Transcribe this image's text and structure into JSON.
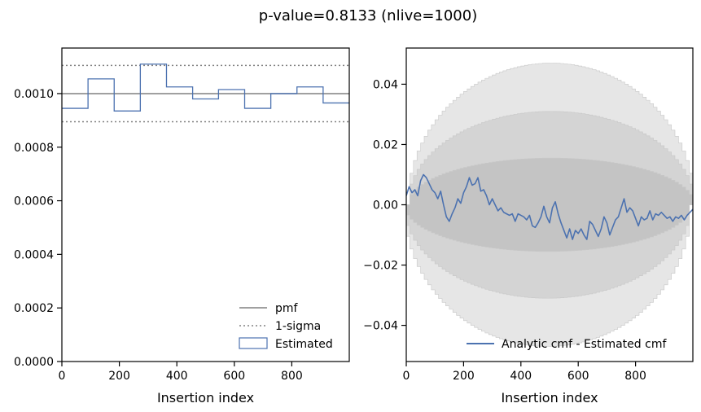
{
  "title": "p-value=0.8133 (nlive=1000)",
  "chart_data": [
    {
      "type": "histogram",
      "xlabel": "Insertion index",
      "ylabel": "",
      "xlim": [
        0,
        1000
      ],
      "ylim": [
        0,
        0.00117
      ],
      "xticks": [
        0,
        200,
        400,
        600,
        800
      ],
      "xtick_labels": [
        "0",
        "200",
        "400",
        "600",
        "800"
      ],
      "yticks": [
        0.0,
        0.0002,
        0.0004,
        0.0006,
        0.0008,
        0.001
      ],
      "ytick_labels": [
        "0.0000",
        "0.0002",
        "0.0004",
        "0.0006",
        "0.0008",
        "0.0010"
      ],
      "pmf": 0.001,
      "sigma_upper": 0.001105,
      "sigma_lower": 0.000895,
      "bin_edges": [
        0,
        91,
        182,
        273,
        364,
        455,
        545,
        636,
        727,
        818,
        909,
        1000
      ],
      "bin_values": [
        0.000945,
        0.001055,
        0.000935,
        0.00111,
        0.001025,
        0.00098,
        0.001015,
        0.000945,
        0.001,
        0.001025,
        0.000965
      ],
      "legend": [
        "pmf",
        "1-sigma",
        "Estimated"
      ],
      "legend_position": "bottom-right",
      "colors": {
        "pmf": "#808080",
        "sigma": "#808080",
        "estimated": "#4c72b0"
      }
    },
    {
      "type": "line",
      "xlabel": "Insertion index",
      "ylabel": "",
      "xlim": [
        0,
        1000
      ],
      "ylim": [
        -0.052,
        0.052
      ],
      "xticks": [
        0,
        200,
        400,
        600,
        800
      ],
      "xtick_labels": [
        "0",
        "200",
        "400",
        "600",
        "800"
      ],
      "yticks": [
        -0.04,
        -0.02,
        0.0,
        0.02,
        0.04
      ],
      "ytick_labels": [
        "−0.04",
        "−0.02",
        "0.00",
        "0.02",
        "0.04"
      ],
      "bands": [
        {
          "sigma": 3,
          "max": 0.047,
          "color": "#e6e6e6"
        },
        {
          "sigma": 2,
          "max": 0.031,
          "color": "#d4d4d4"
        },
        {
          "sigma": 1,
          "max": 0.0155,
          "color": "#c4c4c4"
        }
      ],
      "series": [
        {
          "name": "Analytic cmf - Estimated cmf",
          "color": "#4c72b0",
          "x": [
            0,
            10,
            20,
            30,
            40,
            50,
            60,
            70,
            80,
            90,
            100,
            110,
            120,
            130,
            140,
            150,
            160,
            170,
            180,
            190,
            200,
            210,
            220,
            230,
            240,
            250,
            260,
            270,
            280,
            290,
            300,
            310,
            320,
            330,
            340,
            350,
            360,
            370,
            380,
            390,
            400,
            410,
            420,
            430,
            440,
            450,
            460,
            470,
            480,
            490,
            500,
            510,
            520,
            530,
            540,
            550,
            560,
            570,
            580,
            590,
            600,
            610,
            620,
            630,
            640,
            650,
            660,
            670,
            680,
            690,
            700,
            710,
            720,
            730,
            740,
            750,
            760,
            770,
            780,
            790,
            800,
            810,
            820,
            830,
            840,
            850,
            860,
            870,
            880,
            890,
            900,
            910,
            920,
            930,
            940,
            950,
            960,
            970,
            980,
            990,
            1000
          ],
          "y": [
            0.003,
            0.006,
            0.004,
            0.005,
            0.003,
            0.008,
            0.01,
            0.009,
            0.007,
            0.005,
            0.004,
            0.002,
            0.0045,
            0.0,
            -0.004,
            -0.0055,
            -0.003,
            -0.001,
            0.002,
            0.0005,
            0.004,
            0.006,
            0.009,
            0.0065,
            0.007,
            0.009,
            0.0045,
            0.005,
            0.003,
            0.0,
            0.002,
            0.0,
            -0.002,
            -0.001,
            -0.0025,
            -0.003,
            -0.0035,
            -0.003,
            -0.0055,
            -0.003,
            -0.0035,
            -0.004,
            -0.005,
            -0.0035,
            -0.007,
            -0.0075,
            -0.006,
            -0.004,
            -0.0005,
            -0.004,
            -0.006,
            -0.001,
            0.001,
            -0.003,
            -0.006,
            -0.0085,
            -0.011,
            -0.008,
            -0.0115,
            -0.0085,
            -0.0095,
            -0.008,
            -0.01,
            -0.0115,
            -0.0055,
            -0.0065,
            -0.0085,
            -0.0105,
            -0.008,
            -0.004,
            -0.006,
            -0.01,
            -0.0075,
            -0.005,
            -0.004,
            -0.001,
            0.002,
            -0.0025,
            -0.001,
            -0.002,
            -0.0045,
            -0.007,
            -0.004,
            -0.005,
            -0.0045,
            -0.002,
            -0.005,
            -0.003,
            -0.0035,
            -0.0025,
            -0.0035,
            -0.0045,
            -0.004,
            -0.0055,
            -0.004,
            -0.0045,
            -0.0035,
            -0.005,
            -0.0035,
            -0.0025,
            -0.0015
          ]
        }
      ],
      "legend_position": "bottom-right"
    }
  ]
}
